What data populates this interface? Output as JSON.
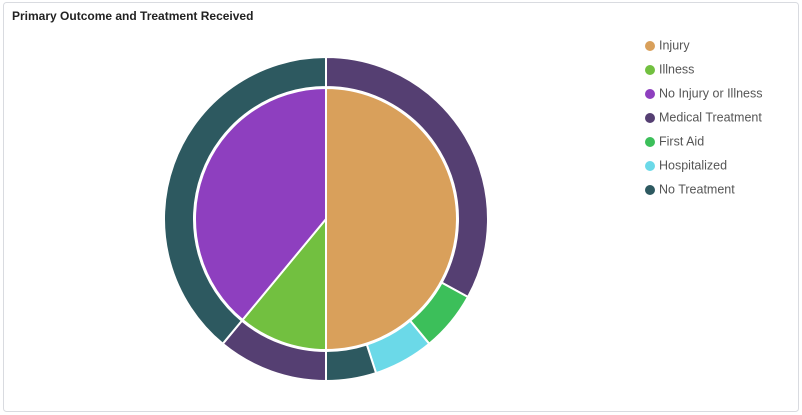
{
  "chart_data": {
    "type": "nested-pie",
    "title": "Primary Outcome and Treatment Received",
    "categories": [
      "Injury",
      "Illness",
      "No Injury or Illness"
    ],
    "values": [
      50,
      11,
      39
    ],
    "colors": [
      "#d9a05b",
      "#72c040",
      "#8e3fbf"
    ],
    "series": [
      {
        "name": "Medical Treatment",
        "color": "#553f72",
        "values": [
          33,
          11,
          null
        ]
      },
      {
        "name": "First Aid",
        "color": "#3cbf5a",
        "values": [
          6,
          null,
          null
        ]
      },
      {
        "name": "Hospitalized",
        "color": "#6bd9e8",
        "values": [
          6,
          null,
          null
        ]
      },
      {
        "name": "No Treatment",
        "color": "#2d5960",
        "values": [
          5,
          null,
          39
        ]
      }
    ]
  }
}
